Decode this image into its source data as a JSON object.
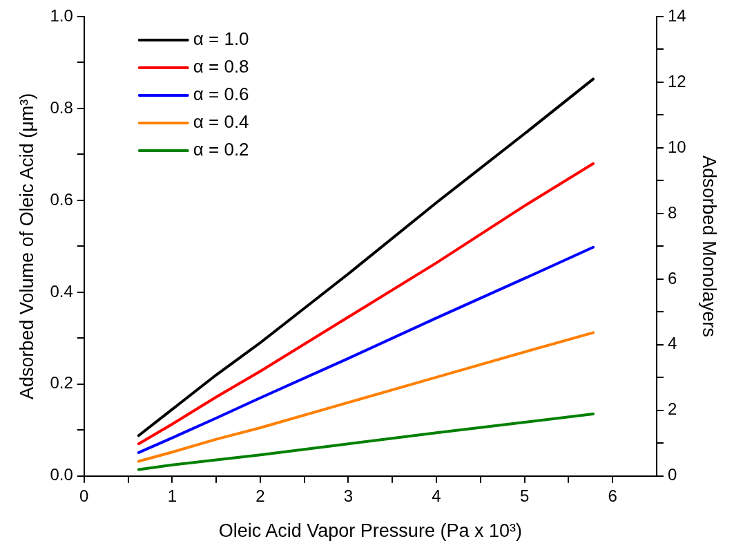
{
  "chart_data": {
    "type": "line",
    "xlabel": "Oleic Acid Vapor Pressure (Pa x 10³)",
    "ylabel": "Adsorbed Volume of Oleic Acid (μm³)",
    "y2label": "Adsorbed Monolayers",
    "x": [
      0.62,
      1,
      1.5,
      2,
      3,
      4,
      5,
      5.78
    ],
    "series": [
      {
        "name": "α = 1.0",
        "color": "#000000",
        "values": [
          0.088,
          0.145,
          0.22,
          0.29,
          0.44,
          0.595,
          0.745,
          0.864
        ]
      },
      {
        "name": "α = 0.8",
        "color": "#ff0000",
        "values": [
          0.07,
          0.113,
          0.172,
          0.228,
          0.346,
          0.464,
          0.588,
          0.68
        ]
      },
      {
        "name": "α = 0.6",
        "color": "#0000ff",
        "values": [
          0.051,
          0.083,
          0.126,
          0.17,
          0.256,
          0.344,
          0.43,
          0.498
        ]
      },
      {
        "name": "α = 0.4",
        "color": "#ff8000",
        "values": [
          0.032,
          0.052,
          0.08,
          0.105,
          0.16,
          0.215,
          0.27,
          0.312
        ]
      },
      {
        "name": "α = 0.2",
        "color": "#008000",
        "values": [
          0.014,
          0.024,
          0.035,
          0.046,
          0.07,
          0.094,
          0.117,
          0.135
        ]
      }
    ],
    "xlim": [
      0,
      6.5
    ],
    "xticks": [
      0,
      {
        "value": 0.5,
        "label": null
      },
      1,
      {
        "value": 1.5,
        "label": null
      },
      2,
      {
        "value": 2.5,
        "label": null
      },
      3,
      {
        "value": 3.5,
        "label": null
      },
      4,
      {
        "value": 4.5,
        "label": null
      },
      5,
      {
        "value": 5.5,
        "label": null
      },
      6
    ],
    "ylim": [
      0,
      1.0
    ],
    "yticks": [
      {
        "value": 0,
        "label": "0.0"
      },
      {
        "value": 0.1,
        "label": null
      },
      0.2,
      {
        "value": 0.3,
        "label": null
      },
      0.4,
      {
        "value": 0.5,
        "label": null
      },
      0.6,
      {
        "value": 0.7,
        "label": null
      },
      0.8,
      {
        "value": 0.9,
        "label": null
      },
      {
        "value": 1.0,
        "label": "1.0"
      }
    ],
    "y2lim": [
      0,
      14
    ],
    "y2ticks": [
      0,
      {
        "value": 1,
        "label": null
      },
      2,
      {
        "value": 3,
        "label": null
      },
      4,
      {
        "value": 5,
        "label": null
      },
      6,
      {
        "value": 7,
        "label": null
      },
      8,
      {
        "value": 9,
        "label": null
      },
      10,
      {
        "value": 11,
        "label": null
      },
      12,
      {
        "value": 13,
        "label": null
      },
      14
    ],
    "grid": false,
    "legend": "top left",
    "marker": "none",
    "line_style": "solid"
  }
}
